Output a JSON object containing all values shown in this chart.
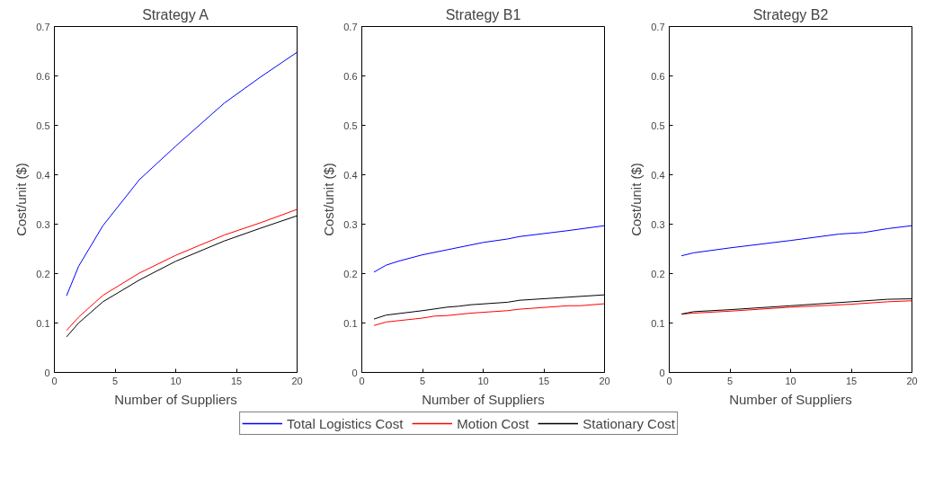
{
  "chart_data": [
    {
      "type": "line",
      "title": "Strategy A",
      "xlabel": "Number of Suppliers",
      "ylabel": "Cost/unit ($)",
      "xlim": [
        0,
        20
      ],
      "xticks": [
        0,
        5,
        10,
        15,
        20
      ],
      "ylim": [
        0,
        0.7
      ],
      "yticks": [
        0,
        0.1,
        0.2,
        0.3,
        0.4,
        0.5,
        0.6,
        0.7
      ],
      "grid": false,
      "marker": "none",
      "line_style": "solid",
      "series": [
        {
          "color": "#0000ff",
          "x": [
            1,
            2,
            4,
            7,
            10,
            14,
            17,
            20
          ],
          "values": [
            0.155,
            0.215,
            0.297,
            0.39,
            0.458,
            0.545,
            0.598,
            0.648
          ]
        },
        {
          "color": "#ff0000",
          "x": [
            1,
            2,
            4,
            7,
            10,
            14,
            17,
            20
          ],
          "values": [
            0.085,
            0.112,
            0.156,
            0.201,
            0.237,
            0.278,
            0.303,
            0.33
          ]
        },
        {
          "color": "#000000",
          "x": [
            1,
            2,
            4,
            7,
            10,
            14,
            17,
            20
          ],
          "values": [
            0.072,
            0.1,
            0.143,
            0.187,
            0.225,
            0.266,
            0.292,
            0.317
          ]
        }
      ]
    },
    {
      "type": "line",
      "title": "Strategy B1",
      "xlabel": "Number of Suppliers",
      "ylabel": "Cost/unit ($)",
      "xlim": [
        0,
        20
      ],
      "xticks": [
        0,
        5,
        10,
        15,
        20
      ],
      "ylim": [
        0,
        0.7
      ],
      "yticks": [
        0,
        0.1,
        0.2,
        0.3,
        0.4,
        0.5,
        0.6,
        0.7
      ],
      "grid": false,
      "legend": "bottom",
      "marker": "none",
      "line_style": "solid",
      "series": [
        {
          "name": "Total Logistics Cost",
          "color": "#0000ff",
          "x": [
            1,
            2,
            3,
            5,
            10,
            12,
            13,
            17,
            20
          ],
          "values": [
            0.203,
            0.217,
            0.225,
            0.238,
            0.263,
            0.27,
            0.275,
            0.287,
            0.297
          ]
        },
        {
          "name": "Motion Cost",
          "color": "#ff0000",
          "x": [
            1,
            2,
            5,
            6,
            7,
            9,
            12,
            13,
            17,
            18,
            20
          ],
          "values": [
            0.095,
            0.102,
            0.11,
            0.114,
            0.115,
            0.12,
            0.125,
            0.128,
            0.135,
            0.135,
            0.139
          ]
        },
        {
          "name": "Stationary Cost",
          "color": "#000000",
          "x": [
            1,
            2,
            5,
            7,
            8,
            9,
            12,
            13,
            20
          ],
          "values": [
            0.108,
            0.116,
            0.125,
            0.132,
            0.134,
            0.137,
            0.142,
            0.146,
            0.157
          ]
        }
      ]
    },
    {
      "type": "line",
      "title": "Strategy B2",
      "xlabel": "Number of Suppliers",
      "ylabel": "Cost/unit ($)",
      "xlim": [
        0,
        20
      ],
      "xticks": [
        0,
        5,
        10,
        15,
        20
      ],
      "ylim": [
        0,
        0.7
      ],
      "yticks": [
        0,
        0.1,
        0.2,
        0.3,
        0.4,
        0.5,
        0.6,
        0.7
      ],
      "grid": false,
      "marker": "none",
      "line_style": "solid",
      "series": [
        {
          "color": "#0000ff",
          "x": [
            1,
            2,
            5,
            10,
            14,
            16,
            18,
            20
          ],
          "values": [
            0.236,
            0.242,
            0.252,
            0.267,
            0.28,
            0.283,
            0.291,
            0.297
          ]
        },
        {
          "color": "#ff0000",
          "x": [
            1,
            2,
            5,
            10,
            15,
            18,
            20
          ],
          "values": [
            0.118,
            0.12,
            0.124,
            0.132,
            0.138,
            0.143,
            0.145
          ]
        },
        {
          "color": "#000000",
          "x": [
            1,
            2,
            5,
            10,
            15,
            18,
            20
          ],
          "values": [
            0.118,
            0.123,
            0.127,
            0.135,
            0.143,
            0.148,
            0.149
          ]
        }
      ]
    }
  ]
}
